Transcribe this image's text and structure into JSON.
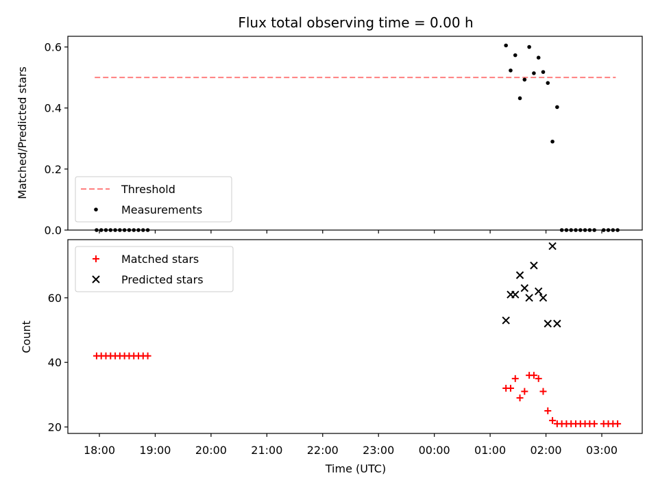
{
  "chart_data": {
    "title": "Flux total observing time = 0.00 h",
    "xlabel": "Time (UTC)",
    "x_tick_labels": [
      "18:00",
      "19:00",
      "20:00",
      "21:00",
      "22:00",
      "23:00",
      "00:00",
      "01:00",
      "02:00",
      "03:00"
    ],
    "panels": [
      {
        "type": "scatter",
        "ylabel": "Matched/Predicted stars",
        "ylim": [
          0,
          0.635
        ],
        "yticks": [
          "0.0",
          "0.2",
          "0.4",
          "0.6"
        ],
        "legend_placement": "lower-left",
        "series": [
          {
            "name": "Threshold",
            "style": "dashed-line",
            "color": "#ff7f7f",
            "x": [
              "17:55",
              "03:15"
            ],
            "y": [
              0.5,
              0.5
            ]
          },
          {
            "name": "Measurements",
            "style": "dot",
            "color": "#000000",
            "x": [
              "17:57",
              "18:02",
              "18:07",
              "18:12",
              "18:17",
              "18:22",
              "18:27",
              "18:32",
              "18:37",
              "18:42",
              "18:47",
              "18:52",
              "01:17",
              "01:22",
              "01:27",
              "01:32",
              "01:37",
              "01:42",
              "01:47",
              "01:52",
              "01:57",
              "02:02",
              "02:07",
              "02:12",
              "02:17",
              "02:22",
              "02:27",
              "02:32",
              "02:37",
              "02:42",
              "02:47",
              "02:52",
              "03:02",
              "03:07",
              "03:12",
              "03:17"
            ],
            "y": [
              0,
              0,
              0,
              0,
              0,
              0,
              0,
              0,
              0,
              0,
              0,
              0,
              0.605,
              0.523,
              0.573,
              0.432,
              0.493,
              0.6,
              0.514,
              0.565,
              0.518,
              0.482,
              0.29,
              0.403,
              0,
              0,
              0,
              0,
              0,
              0,
              0,
              0,
              0,
              0,
              0,
              0
            ]
          }
        ]
      },
      {
        "type": "scatter",
        "ylabel": "Count",
        "ylim": [
          18,
          78
        ],
        "yticks": [
          "20",
          "40",
          "60"
        ],
        "legend_placement": "upper-left",
        "series": [
          {
            "name": "Matched stars",
            "marker": "plus",
            "color": "#ff0000",
            "x": [
              "17:57",
              "18:02",
              "18:07",
              "18:12",
              "18:17",
              "18:22",
              "18:27",
              "18:32",
              "18:37",
              "18:42",
              "18:47",
              "18:52",
              "01:17",
              "01:22",
              "01:27",
              "01:32",
              "01:37",
              "01:42",
              "01:47",
              "01:52",
              "01:57",
              "02:02",
              "02:07",
              "02:12",
              "02:17",
              "02:22",
              "02:27",
              "02:32",
              "02:37",
              "02:42",
              "02:47",
              "02:52",
              "03:02",
              "03:07",
              "03:12",
              "03:17"
            ],
            "y": [
              42,
              42,
              42,
              42,
              42,
              42,
              42,
              42,
              42,
              42,
              42,
              42,
              32,
              32,
              35,
              29,
              31,
              36,
              36,
              35,
              31,
              25,
              22,
              21,
              21,
              21,
              21,
              21,
              21,
              21,
              21,
              21,
              21,
              21,
              21,
              21
            ]
          },
          {
            "name": "Predicted stars",
            "marker": "x",
            "color": "#000000",
            "x": [
              "01:17",
              "01:22",
              "01:27",
              "01:32",
              "01:37",
              "01:42",
              "01:47",
              "01:52",
              "01:57",
              "02:02",
              "02:07",
              "02:12"
            ],
            "y": [
              53,
              61,
              61,
              67,
              63,
              60,
              70,
              62,
              60,
              52,
              76,
              52
            ]
          }
        ]
      }
    ]
  }
}
